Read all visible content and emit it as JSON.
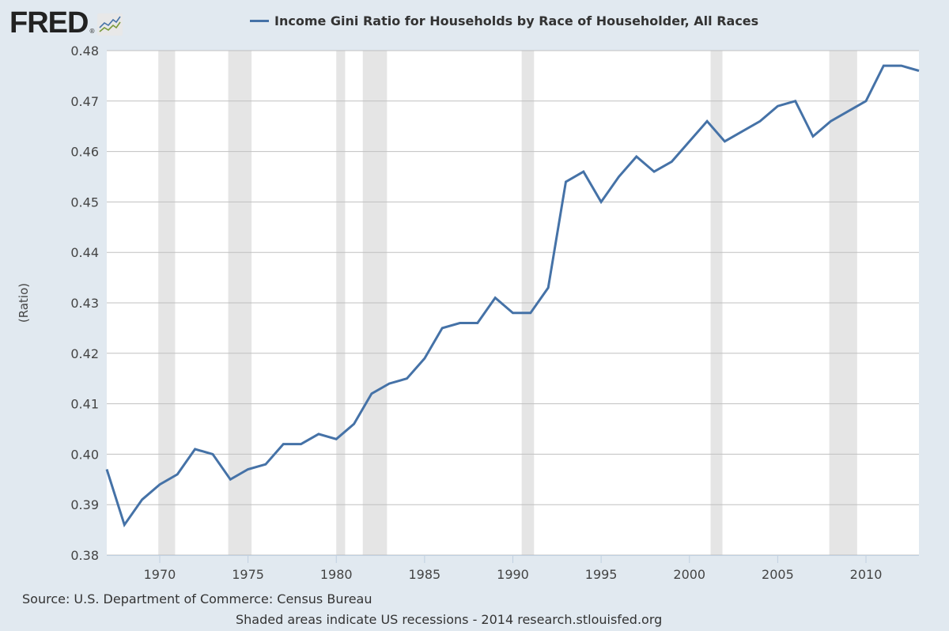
{
  "header": {
    "logo_text": "FRED",
    "logo_reg": "®",
    "legend_label": "Income Gini Ratio for Households by Race of Householder, All Races"
  },
  "footer": {
    "source": "Source: U.S. Department of Commerce: Census Bureau",
    "note": "Shaded areas indicate US recessions - 2014 research.stlouisfed.org"
  },
  "colors": {
    "series": "#4572a7",
    "background": "#e1e9f0",
    "plot_background": "#ffffff",
    "recession": "#e5e5e5",
    "grid": "#c0c0c0"
  },
  "chart_data": {
    "type": "line",
    "title": "Income Gini Ratio for Households by Race of Householder, All Races",
    "xlabel": "",
    "ylabel": "(Ratio)",
    "xlim": [
      1967,
      2013
    ],
    "ylim": [
      0.38,
      0.48
    ],
    "grid": true,
    "legend_position": "top",
    "yticks": [
      "0.38",
      "0.39",
      "0.40",
      "0.41",
      "0.42",
      "0.43",
      "0.44",
      "0.45",
      "0.46",
      "0.47",
      "0.48"
    ],
    "xticks": [
      "1970",
      "1975",
      "1980",
      "1985",
      "1990",
      "1995",
      "2000",
      "2005",
      "2010"
    ],
    "recessions": [
      [
        1969.92,
        1970.87
      ],
      [
        1973.88,
        1975.2
      ],
      [
        1980.0,
        1980.5
      ],
      [
        1981.5,
        1982.87
      ],
      [
        1990.5,
        1991.2
      ],
      [
        2001.2,
        2001.87
      ],
      [
        2007.92,
        2009.5
      ]
    ],
    "series": [
      {
        "name": "Income Gini Ratio for Households by Race of Householder, All Races",
        "x": [
          1967,
          1968,
          1969,
          1970,
          1971,
          1972,
          1973,
          1974,
          1975,
          1976,
          1977,
          1978,
          1979,
          1980,
          1981,
          1982,
          1983,
          1984,
          1985,
          1986,
          1987,
          1988,
          1989,
          1990,
          1991,
          1992,
          1993,
          1994,
          1995,
          1996,
          1997,
          1998,
          1999,
          2000,
          2001,
          2002,
          2003,
          2004,
          2005,
          2006,
          2007,
          2008,
          2009,
          2010,
          2011,
          2012,
          2013
        ],
        "values": [
          0.397,
          0.386,
          0.391,
          0.394,
          0.396,
          0.401,
          0.4,
          0.395,
          0.397,
          0.398,
          0.402,
          0.402,
          0.404,
          0.403,
          0.406,
          0.412,
          0.414,
          0.415,
          0.419,
          0.425,
          0.426,
          0.426,
          0.431,
          0.428,
          0.428,
          0.433,
          0.454,
          0.456,
          0.45,
          0.455,
          0.459,
          0.456,
          0.458,
          0.462,
          0.466,
          0.462,
          0.464,
          0.466,
          0.469,
          0.47,
          0.463,
          0.466,
          0.468,
          0.47,
          0.477,
          0.477,
          0.476
        ]
      }
    ]
  }
}
